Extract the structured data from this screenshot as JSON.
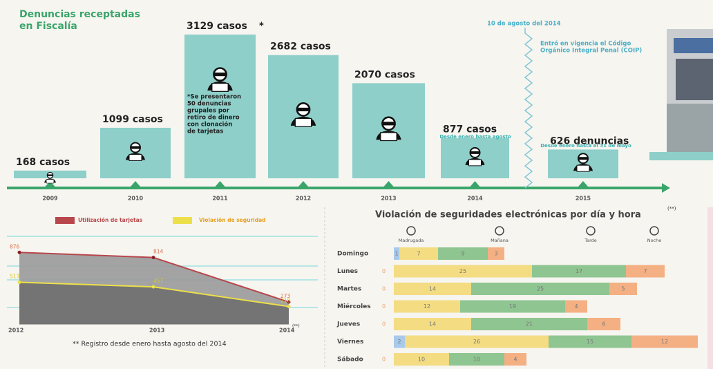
{
  "title_lines": [
    "Denuncias receptadas",
    "en Fiscalía"
  ],
  "timeline": {
    "years": [
      "2009",
      "2010",
      "2011",
      "2012",
      "2013",
      "2014",
      "2015"
    ],
    "values": [
      168,
      1099,
      3129,
      2682,
      2070,
      877,
      626
    ],
    "value_labels": [
      "168 casos",
      "1099 casos",
      "3129 casos",
      "2682 casos",
      "2070 casos",
      "877 casos",
      "626 denuncias"
    ],
    "color": "#8ecfc9",
    "mark_2011": "*",
    "note_2011": [
      "*Se presentaron",
      "50 denuncias",
      "grupales por",
      "retiro de dinero",
      "con clonación",
      "de tarjetas"
    ],
    "note_2014": "Desde enero hasta agosto",
    "note_2015": "Desde enero hasta el 31 de mayo"
  },
  "event": {
    "date": "10 de agosto del 2014",
    "text": [
      "Entró en vigencia el Código",
      "Orgánico Integral Penal (COIP)"
    ]
  },
  "lines": {
    "categories": [
      "2012",
      "2013",
      "2014"
    ],
    "last_mark": "(**)",
    "series": [
      {
        "name": "Utilización de tarjetas",
        "color": "#b8474c",
        "values": [
          876,
          814,
          273
        ]
      },
      {
        "name": "Violación de seguridad",
        "color": "#ece04a",
        "values": [
          513,
          457,
          218
        ]
      }
    ],
    "footnote": "** Registro desde enero hasta agosto del 2014"
  },
  "heatmap": {
    "title": "Violación de seguridades electrónicas por día y hora",
    "title_mark": "(**)",
    "columns": [
      "Madrugada",
      "Mañana",
      "Tarde",
      "Noche"
    ],
    "colors": [
      "#a9c9ea",
      "#f4dc82",
      "#8fc591",
      "#f4b083"
    ],
    "rows": [
      "Domingo",
      "Lunes",
      "Martes",
      "Miércoles",
      "Jueves",
      "Viernes",
      "Sábado"
    ],
    "values": [
      [
        1,
        7,
        9,
        3
      ],
      [
        0,
        25,
        17,
        7
      ],
      [
        0,
        14,
        25,
        5
      ],
      [
        0,
        12,
        19,
        4
      ],
      [
        0,
        14,
        21,
        6
      ],
      [
        2,
        26,
        15,
        12
      ],
      [
        0,
        10,
        10,
        4
      ]
    ]
  }
}
